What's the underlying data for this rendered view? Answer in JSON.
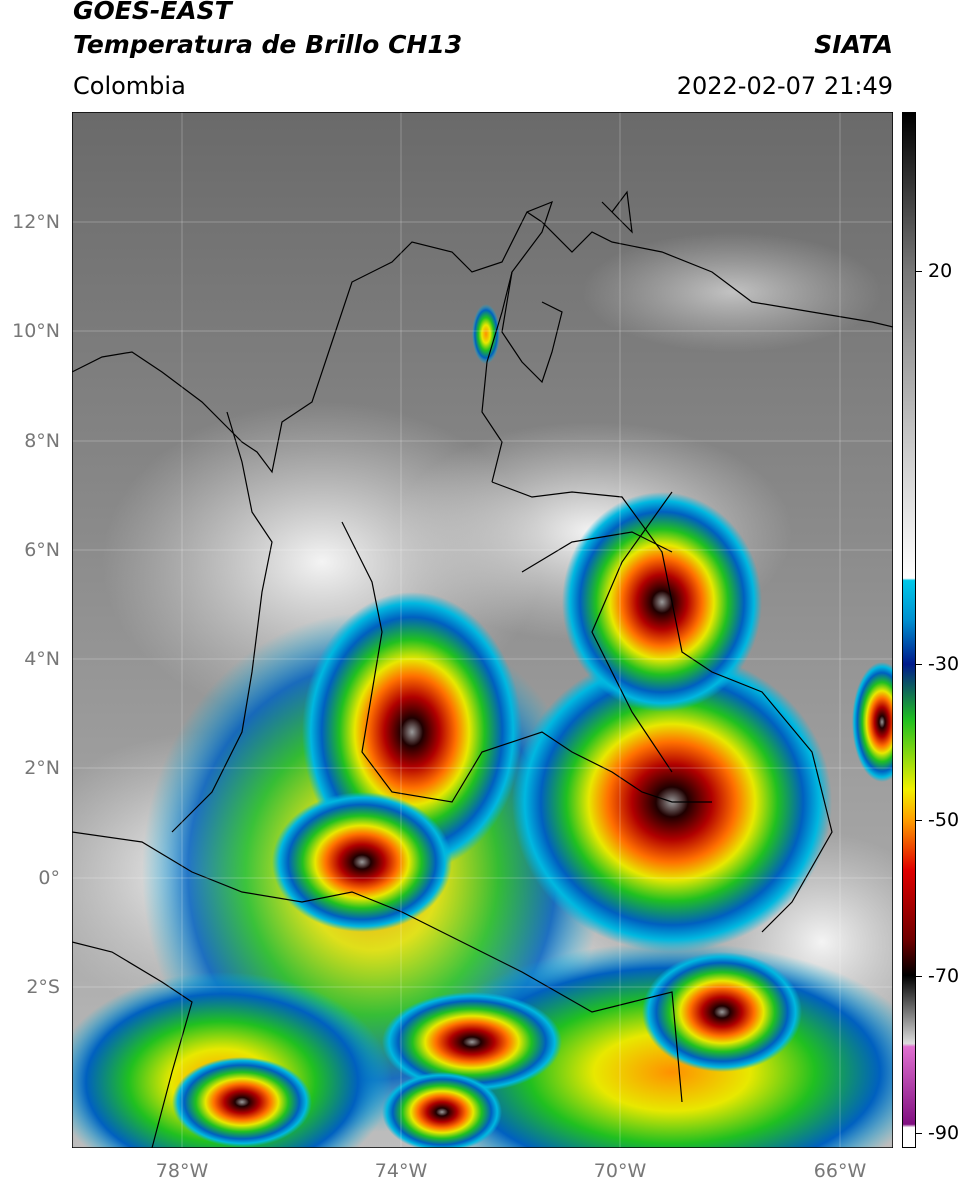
{
  "header": {
    "title": "GOES-EAST",
    "subtitle": "Temperatura de Brillo CH13",
    "region": "Colombia",
    "source": "SIATA",
    "datetime": "2022-02-07 21:49"
  },
  "map": {
    "lat_ticks": [
      "12°N",
      "10°N",
      "8°N",
      "6°N",
      "4°N",
      "2°N",
      "0°",
      "2°S"
    ],
    "lon_ticks": [
      "78°W",
      "74°W",
      "70°W",
      "66°W"
    ]
  },
  "colorbar": {
    "ticks": [
      "20",
      "-30",
      "-50",
      "-70",
      "-90"
    ]
  }
}
